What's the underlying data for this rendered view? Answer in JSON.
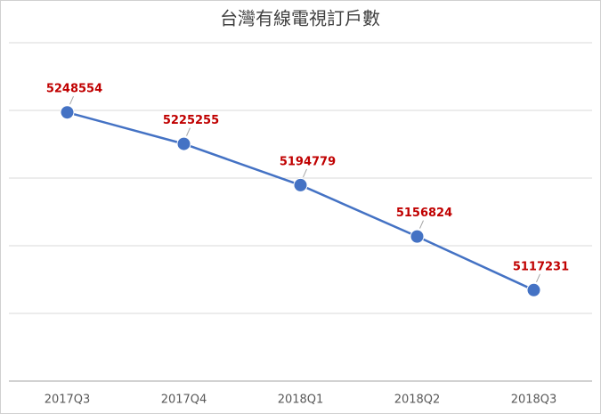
{
  "chart_data": {
    "type": "line",
    "title": "台灣有線電視訂戶數",
    "categories": [
      "2017Q3",
      "2017Q4",
      "2018Q1",
      "2018Q2",
      "2018Q3"
    ],
    "series": [
      {
        "color": "#4472c4",
        "values": [
          5248554,
          5225255,
          5194779,
          5156824,
          5117231
        ]
      }
    ],
    "ylim": [
      5050000,
      5300000
    ],
    "yticks": [
      5050000,
      5100000,
      5150000,
      5200000,
      5250000,
      5300000
    ],
    "grid": true,
    "label_color": "#c00000"
  }
}
